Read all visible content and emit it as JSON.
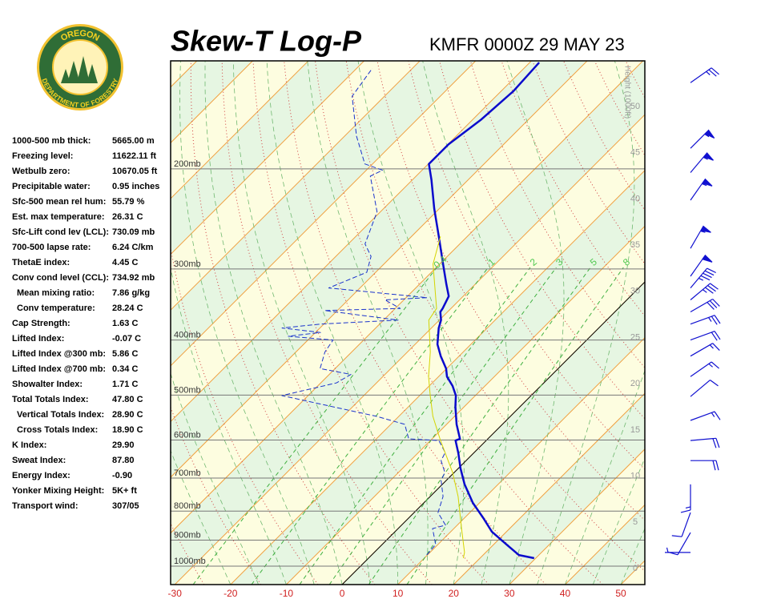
{
  "logo": {
    "top": "OREGON",
    "bottom": "DEPARTMENT OF FORESTRY"
  },
  "stats": [
    {
      "label": "1000-500 mb thick:",
      "value": "5665.00 m"
    },
    {
      "label": "Freezing level:",
      "value": "11622.11 ft"
    },
    {
      "label": "Wetbulb zero:",
      "value": "10670.05 ft"
    },
    {
      "label": "Precipitable water:",
      "value": "0.95 inches"
    },
    {
      "label": "Sfc-500 mean rel hum:",
      "value": "55.79 %"
    },
    {
      "label": "Est. max temperature:",
      "value": "26.31 C"
    },
    {
      "label": "Sfc-Lift cond lev (LCL):",
      "value": "730.09 mb"
    },
    {
      "label": "700-500 lapse rate:",
      "value": "6.24 C/km"
    },
    {
      "label": "ThetaE index:",
      "value": "4.45 C"
    },
    {
      "label": "Conv cond level (CCL):",
      "value": "734.92 mb",
      "sub": [
        {
          "label": "Mean mixing ratio:",
          "value": "7.86 g/kg"
        },
        {
          "label": "Conv temperature:",
          "value": "28.24 C"
        }
      ]
    },
    {
      "label": "Cap Strength:",
      "value": "1.63 C"
    },
    {
      "label": "Lifted Index:",
      "value": "-0.07 C"
    },
    {
      "label": "Lifted Index @300 mb:",
      "value": "5.86 C"
    },
    {
      "label": "Lifted Index @700 mb:",
      "value": "0.34 C"
    },
    {
      "label": "Showalter Index:",
      "value": "1.71 C"
    },
    {
      "label": "Total Totals Index:",
      "value": "47.80 C",
      "sub": [
        {
          "label": "Vertical Totals Index:",
          "value": "28.90 C"
        },
        {
          "label": "Cross Totals Index:",
          "value": "18.90 C"
        }
      ]
    },
    {
      "label": "K Index:",
      "value": "29.90"
    },
    {
      "label": "Sweat Index:",
      "value": "87.80"
    },
    {
      "label": "Energy Index:",
      "value": "-0.90"
    },
    {
      "label": "Yonker Mixing Height:",
      "value": "5K+ ft"
    },
    {
      "label": "Transport wind:",
      "value": "307/05"
    }
  ],
  "chart_data": {
    "type": "skewt",
    "title": "Skew-T Log-P",
    "subtitle": "KMFR 0000Z 29 MAY 23",
    "y2label": "Height (1000ft)",
    "xlim": [
      -30.75,
      54.3
    ],
    "xticks": [
      -30,
      -20,
      -10,
      0,
      10,
      20,
      30,
      40,
      50
    ],
    "log_y": true,
    "ylim": [
      1077.5,
      129.1
    ],
    "yticks": [
      {
        "value": 200,
        "label": "200mb"
      },
      {
        "value": 300,
        "label": "300mb"
      },
      {
        "value": 400,
        "label": "400mb"
      },
      {
        "value": 500,
        "label": "500mb"
      },
      {
        "value": 600,
        "label": "600mb"
      },
      {
        "value": 700,
        "label": "700mb"
      },
      {
        "value": 800,
        "label": "800mb"
      },
      {
        "value": 900,
        "label": "900mb"
      },
      {
        "value": 1000,
        "label": "1000mb"
      }
    ],
    "y2lim": [
      -1.73,
      54.94
    ],
    "y2ticks": [
      0,
      5,
      10,
      15,
      20,
      25,
      30,
      35,
      40,
      45,
      50
    ],
    "grid": true,
    "mixing_ratio_lines": [
      0.4,
      1,
      2,
      3,
      5,
      8
    ],
    "series": [
      {
        "color": "#0a0acc",
        "style": "thick",
        "pressure": [
          968,
          956,
          916,
          870,
          823,
          774,
          718,
          673,
          633,
          601,
          597,
          563,
          524,
          501,
          482,
          464,
          449,
          427,
          407,
          381,
          369,
          357,
          352,
          335,
          319,
          294,
          263,
          235,
          209,
          196,
          181,
          164,
          146,
          130
        ],
        "values": [
          29.7,
          26.4,
          22.3,
          17.4,
          13.4,
          8.8,
          4.0,
          0.4,
          -2.7,
          -5.5,
          -5.0,
          -8.2,
          -11.6,
          -13.5,
          -15.8,
          -18.5,
          -20.1,
          -23.3,
          -26.0,
          -28.7,
          -29.7,
          -31.3,
          -31.5,
          -32.6,
          -35.2,
          -39.4,
          -45.1,
          -50.9,
          -56.6,
          -59.9,
          -59.9,
          -58.5,
          -57.8,
          -58.3
        ]
      },
      {
        "color": "#1a33cc",
        "style": "dashed",
        "pressure": [
          956,
          916,
          859,
          847,
          805,
          754,
          707,
          684,
          652,
          631,
          601,
          597,
          563,
          545,
          501,
          476,
          460,
          449,
          420,
          400,
          394,
          388,
          381,
          375,
          369,
          355,
          352,
          340,
          337,
          324,
          304,
          285,
          271,
          238,
          206,
          201,
          196,
          175,
          149,
          133
        ],
        "values": [
          9.9,
          9.6,
          6.2,
          7.9,
          4.3,
          2.3,
          -0.9,
          -1.7,
          -4.5,
          -5.2,
          -8.5,
          -14.2,
          -17.5,
          -24.0,
          -44.7,
          -37.2,
          -36.1,
          -42.7,
          -44.8,
          -45.5,
          -54.2,
          -49.1,
          -56.8,
          -50.6,
          -37.4,
          -52.3,
          -39.1,
          -43.4,
          -36.2,
          -55.6,
          -51.6,
          -53.7,
          -57.0,
          -60.6,
          -68.2,
          -67.1,
          -71.4,
          -77.9,
          -85.8,
          -87.2
        ]
      },
      {
        "color": "#d4d400",
        "style": "thin",
        "pressure": [
          968,
          946,
          859,
          754,
          684,
          601,
          545,
          501,
          464,
          420,
          369,
          352,
          294,
          263
        ],
        "values": [
          17.0,
          16.2,
          11.4,
          5.0,
          -0.3,
          -8.2,
          -13.9,
          -18.1,
          -21.8,
          -25.9,
          -31.9,
          -32.6,
          -41.2,
          -44.8
        ]
      }
    ],
    "winds": {
      "color": "#1010d0",
      "pressure": [
        141,
        184,
        203,
        227,
        276,
        309,
        324,
        340,
        357,
        375,
        400,
        427,
        464,
        503,
        554,
        601,
        652,
        718,
        805,
        873,
        946
      ],
      "direction": [
        55,
        45,
        40,
        35,
        30,
        35,
        40,
        50,
        60,
        70,
        70,
        60,
        55,
        50,
        70,
        85,
        90,
        180,
        200,
        210,
        270
      ],
      "speed": [
        25,
        55,
        55,
        55,
        55,
        50,
        45,
        35,
        30,
        25,
        20,
        15,
        15,
        10,
        15,
        20,
        20,
        15,
        10,
        10,
        5
      ]
    }
  }
}
